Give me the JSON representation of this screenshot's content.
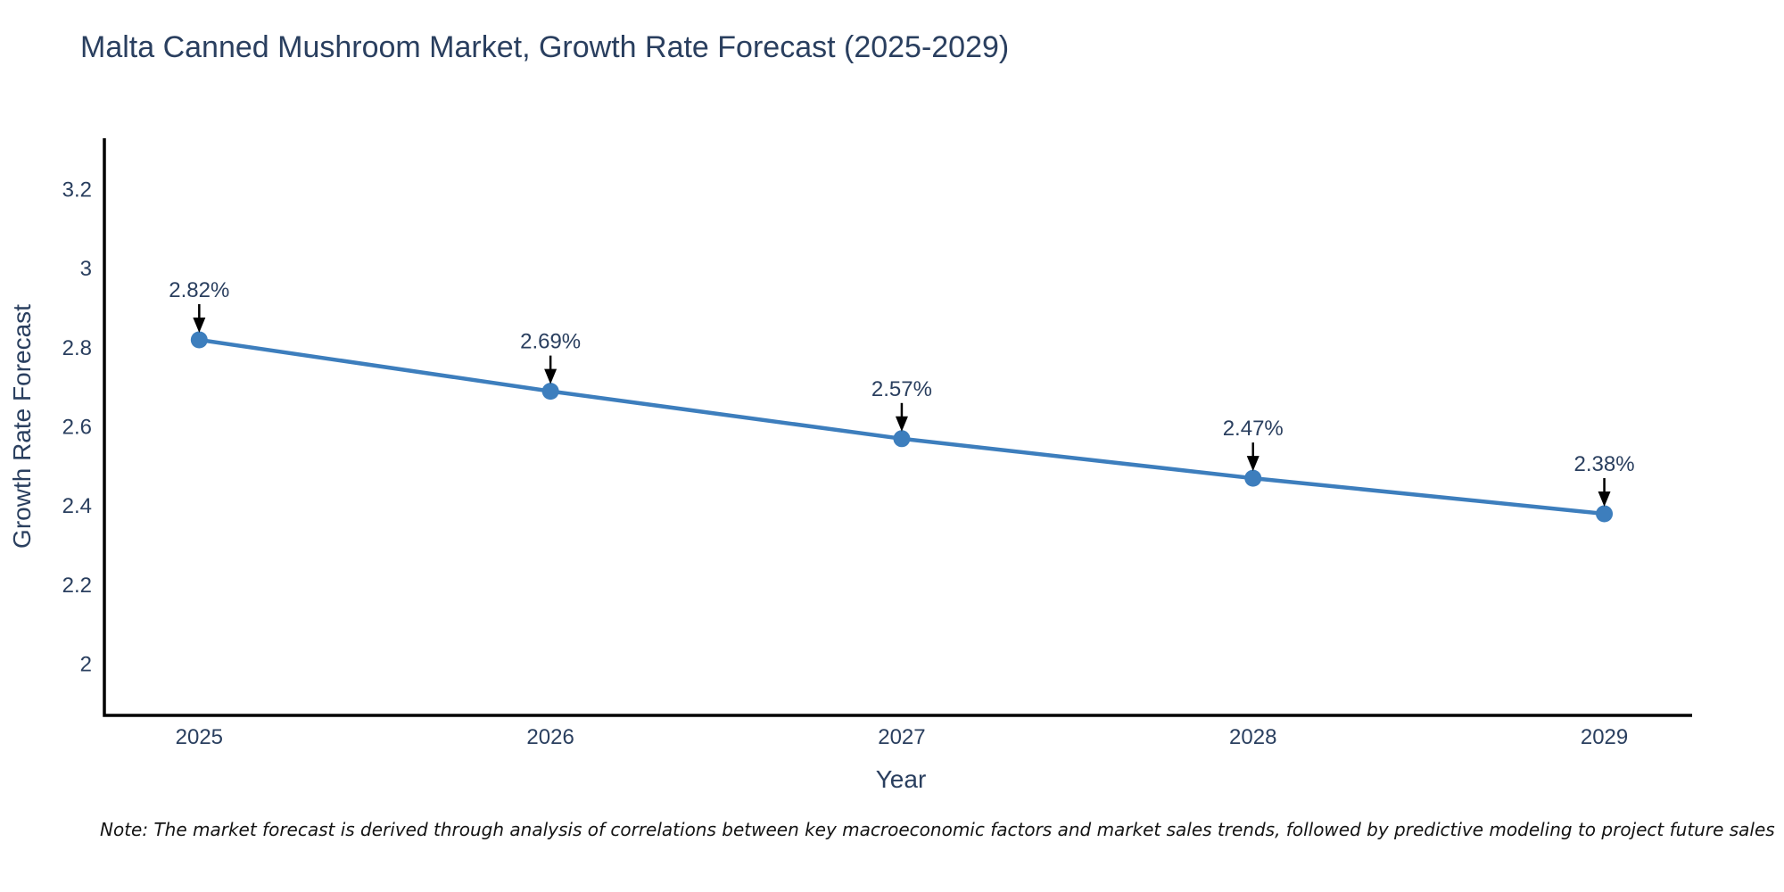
{
  "chart_data": {
    "type": "line",
    "title": "Malta Canned Mushroom Market, Growth Rate Forecast (2025-2029)",
    "xlabel": "Year",
    "ylabel": "Growth Rate Forecast",
    "x": [
      2025,
      2026,
      2027,
      2028,
      2029
    ],
    "values": [
      2.82,
      2.69,
      2.57,
      2.47,
      2.38
    ],
    "point_labels": [
      "2.82%",
      "2.69%",
      "2.57%",
      "2.47%",
      "2.38%"
    ],
    "xticks": [
      2025,
      2026,
      2027,
      2028,
      2029
    ],
    "xtick_labels": [
      "2025",
      "2026",
      "2027",
      "2028",
      "2029"
    ],
    "yticks": [
      2,
      2.2,
      2.4,
      2.6,
      2.8,
      3,
      3.2
    ],
    "ytick_labels": [
      "2",
      "2.2",
      "2.4",
      "2.6",
      "2.8",
      "3",
      "3.2"
    ],
    "xlim": [
      2024.73,
      2029.25
    ],
    "ylim": [
      1.87,
      3.33
    ],
    "grid": false,
    "legend": "none",
    "line_color": "#3d7ebd",
    "marker_color": "#3d7ebd",
    "axis_color": "#000000",
    "text_color": "#2a3f5f",
    "annotation_arrow_color": "#000000",
    "note": "Note: The market forecast is derived through analysis of correlations between key macroeconomic factors and market sales trends, followed by predictive modeling to project future sales"
  }
}
